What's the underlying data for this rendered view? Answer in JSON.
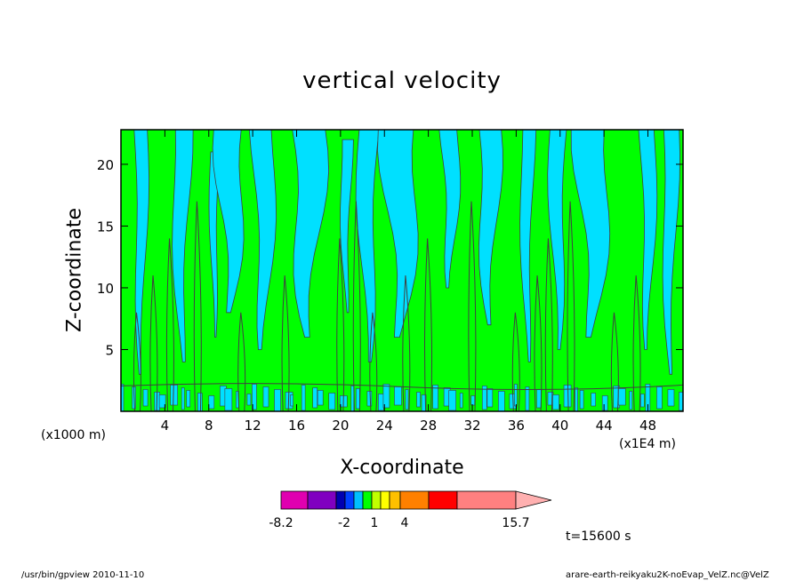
{
  "footer": {
    "left": "/usr/bin/gpview  2010-11-10",
    "right": "arare-earth-reikyaku2K-noEvap_VelZ.nc@VelZ"
  },
  "time_label": "t=15600 s",
  "chart_data": {
    "type": "heatmap",
    "title": "vertical velocity",
    "xlabel": "X-coordinate",
    "ylabel": "Z-coordinate",
    "x_unit_left": "(x1000 m)",
    "x_unit_right": "(x1E4 m)",
    "x_ticks": [
      4,
      8,
      12,
      16,
      20,
      24,
      28,
      32,
      36,
      40,
      44,
      48
    ],
    "y_ticks": [
      5,
      10,
      15,
      20
    ],
    "xlim": [
      0,
      51.2
    ],
    "ylim": [
      0,
      22.8
    ],
    "colorbar": {
      "colors": [
        "#e000b0",
        "#8000c0",
        "#0000b0",
        "#0040ff",
        "#00c0ff",
        "#00ff00",
        "#c0ff00",
        "#ffff00",
        "#ffc000",
        "#ff8000",
        "#ff6000",
        "#ff0000",
        "#ff8080"
      ],
      "tick_labels": [
        "-8.2",
        "-2",
        "1",
        "4",
        "15.7"
      ],
      "extend_color": "#ffb0b0"
    },
    "field_colors": {
      "up": "#00ff00",
      "down": "#00e0ff",
      "contour": "#404040"
    },
    "updraft_x": [
      1.5,
      3,
      4.5,
      7,
      11,
      15,
      20,
      21.5,
      23,
      26,
      28,
      32,
      36,
      38,
      39,
      41,
      45,
      47
    ],
    "downdraft_bands": [
      {
        "x": 1.8,
        "w": 1.2,
        "top": 22.8,
        "bottom": 3
      },
      {
        "x": 5.5,
        "w": 1.6,
        "top": 22.8,
        "bottom": 4
      },
      {
        "x": 8.5,
        "w": 0.8,
        "top": 21,
        "bottom": 6
      },
      {
        "x": 10,
        "w": 2.5,
        "top": 22.8,
        "bottom": 8
      },
      {
        "x": 13,
        "w": 2.0,
        "top": 22.8,
        "bottom": 5
      },
      {
        "x": 17,
        "w": 3.0,
        "top": 22.8,
        "bottom": 6
      },
      {
        "x": 20.5,
        "w": 1.0,
        "top": 22,
        "bottom": 8
      },
      {
        "x": 22.5,
        "w": 1.8,
        "top": 22.8,
        "bottom": 4
      },
      {
        "x": 25.5,
        "w": 3.2,
        "top": 22.8,
        "bottom": 6
      },
      {
        "x": 30,
        "w": 1.6,
        "top": 22.8,
        "bottom": 10
      },
      {
        "x": 33.5,
        "w": 2.0,
        "top": 22.8,
        "bottom": 7
      },
      {
        "x": 37,
        "w": 1.2,
        "top": 22.8,
        "bottom": 4
      },
      {
        "x": 39.8,
        "w": 1.5,
        "top": 22.8,
        "bottom": 5
      },
      {
        "x": 43,
        "w": 3.0,
        "top": 22.8,
        "bottom": 6
      },
      {
        "x": 48,
        "w": 1.4,
        "top": 22.8,
        "bottom": 5
      },
      {
        "x": 50,
        "w": 1.4,
        "top": 22.8,
        "bottom": 3
      }
    ]
  }
}
